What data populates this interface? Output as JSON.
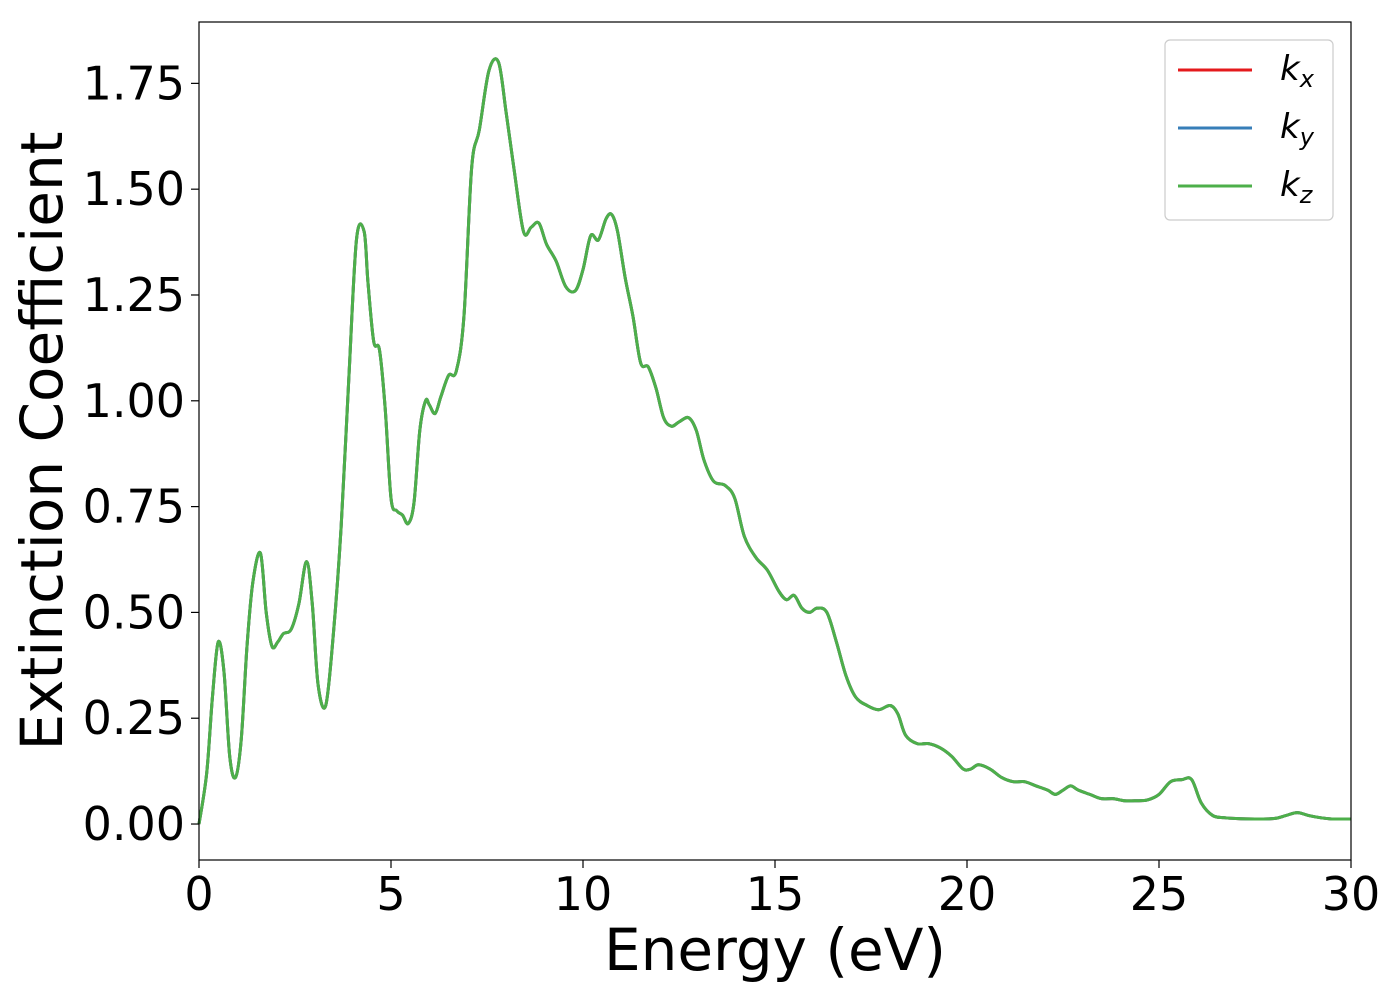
{
  "chart_data": {
    "type": "line",
    "xlabel": "Energy (eV)",
    "ylabel": "Extinction Coefficient",
    "xlim": [
      0,
      30
    ],
    "ylim": [
      -0.085,
      1.895
    ],
    "xticks": [
      0,
      5,
      10,
      15,
      20,
      25,
      30
    ],
    "xtick_labels": [
      "0",
      "5",
      "10",
      "15",
      "20",
      "25",
      "30"
    ],
    "yticks": [
      0.0,
      0.25,
      0.5,
      0.75,
      1.0,
      1.25,
      1.5,
      1.75
    ],
    "ytick_labels": [
      "0.00",
      "0.25",
      "0.50",
      "0.75",
      "1.00",
      "1.25",
      "1.50",
      "1.75"
    ],
    "grid": false,
    "legend_position": "top-right",
    "series": [
      {
        "name": "k",
        "subscript": "x",
        "color": "#e41a1c"
      },
      {
        "name": "k",
        "subscript": "y",
        "color": "#377eb8"
      },
      {
        "name": "k",
        "subscript": "z",
        "color": "#4daf4a"
      }
    ],
    "x": [
      0,
      0.2,
      0.35,
      0.5,
      0.65,
      0.8,
      0.95,
      1.1,
      1.25,
      1.4,
      1.6,
      1.75,
      1.9,
      2.05,
      2.2,
      2.4,
      2.6,
      2.8,
      2.95,
      3.1,
      3.3,
      3.5,
      3.7,
      3.9,
      4.1,
      4.3,
      4.4,
      4.55,
      4.7,
      4.85,
      5.0,
      5.15,
      5.3,
      5.45,
      5.6,
      5.75,
      5.9,
      6.0,
      6.15,
      6.3,
      6.5,
      6.7,
      6.9,
      7.1,
      7.3,
      7.55,
      7.8,
      8.0,
      8.2,
      8.45,
      8.65,
      8.85,
      9.05,
      9.3,
      9.55,
      9.8,
      10.0,
      10.2,
      10.4,
      10.6,
      10.75,
      10.9,
      11.1,
      11.3,
      11.5,
      11.7,
      11.9,
      12.1,
      12.3,
      12.5,
      12.75,
      12.95,
      13.15,
      13.4,
      13.7,
      13.95,
      14.2,
      14.5,
      14.8,
      15.1,
      15.3,
      15.5,
      15.7,
      15.9,
      16.1,
      16.35,
      16.6,
      16.85,
      17.1,
      17.4,
      17.7,
      18.0,
      18.2,
      18.4,
      18.7,
      19.0,
      19.3,
      19.6,
      19.9,
      20.1,
      20.3,
      20.6,
      20.9,
      21.2,
      21.5,
      21.8,
      22.1,
      22.3,
      22.5,
      22.7,
      22.9,
      23.2,
      23.5,
      23.8,
      24.1,
      24.4,
      24.7,
      25.0,
      25.3,
      25.6,
      25.85,
      26.1,
      26.4,
      26.7,
      27.0,
      27.5,
      28.0,
      28.3,
      28.6,
      28.9,
      29.2,
      29.5,
      30.0
    ],
    "y": [
      0.0,
      0.12,
      0.3,
      0.43,
      0.36,
      0.16,
      0.11,
      0.2,
      0.42,
      0.57,
      0.64,
      0.5,
      0.42,
      0.43,
      0.45,
      0.46,
      0.52,
      0.62,
      0.52,
      0.33,
      0.28,
      0.45,
      0.7,
      1.05,
      1.38,
      1.4,
      1.28,
      1.14,
      1.12,
      0.98,
      0.77,
      0.74,
      0.73,
      0.71,
      0.76,
      0.93,
      1.0,
      0.99,
      0.97,
      1.01,
      1.06,
      1.07,
      1.2,
      1.55,
      1.64,
      1.78,
      1.8,
      1.68,
      1.55,
      1.4,
      1.41,
      1.42,
      1.37,
      1.33,
      1.27,
      1.26,
      1.31,
      1.39,
      1.38,
      1.43,
      1.44,
      1.4,
      1.29,
      1.2,
      1.09,
      1.08,
      1.03,
      0.96,
      0.94,
      0.95,
      0.96,
      0.93,
      0.86,
      0.81,
      0.8,
      0.77,
      0.68,
      0.63,
      0.6,
      0.55,
      0.53,
      0.54,
      0.51,
      0.5,
      0.51,
      0.5,
      0.43,
      0.35,
      0.3,
      0.28,
      0.27,
      0.28,
      0.26,
      0.21,
      0.19,
      0.19,
      0.18,
      0.16,
      0.13,
      0.13,
      0.14,
      0.13,
      0.11,
      0.1,
      0.1,
      0.09,
      0.08,
      0.07,
      0.08,
      0.09,
      0.08,
      0.07,
      0.06,
      0.06,
      0.055,
      0.055,
      0.057,
      0.07,
      0.1,
      0.105,
      0.105,
      0.05,
      0.02,
      0.015,
      0.013,
      0.012,
      0.013,
      0.02,
      0.027,
      0.02,
      0.015,
      0.012,
      0.012
    ]
  }
}
